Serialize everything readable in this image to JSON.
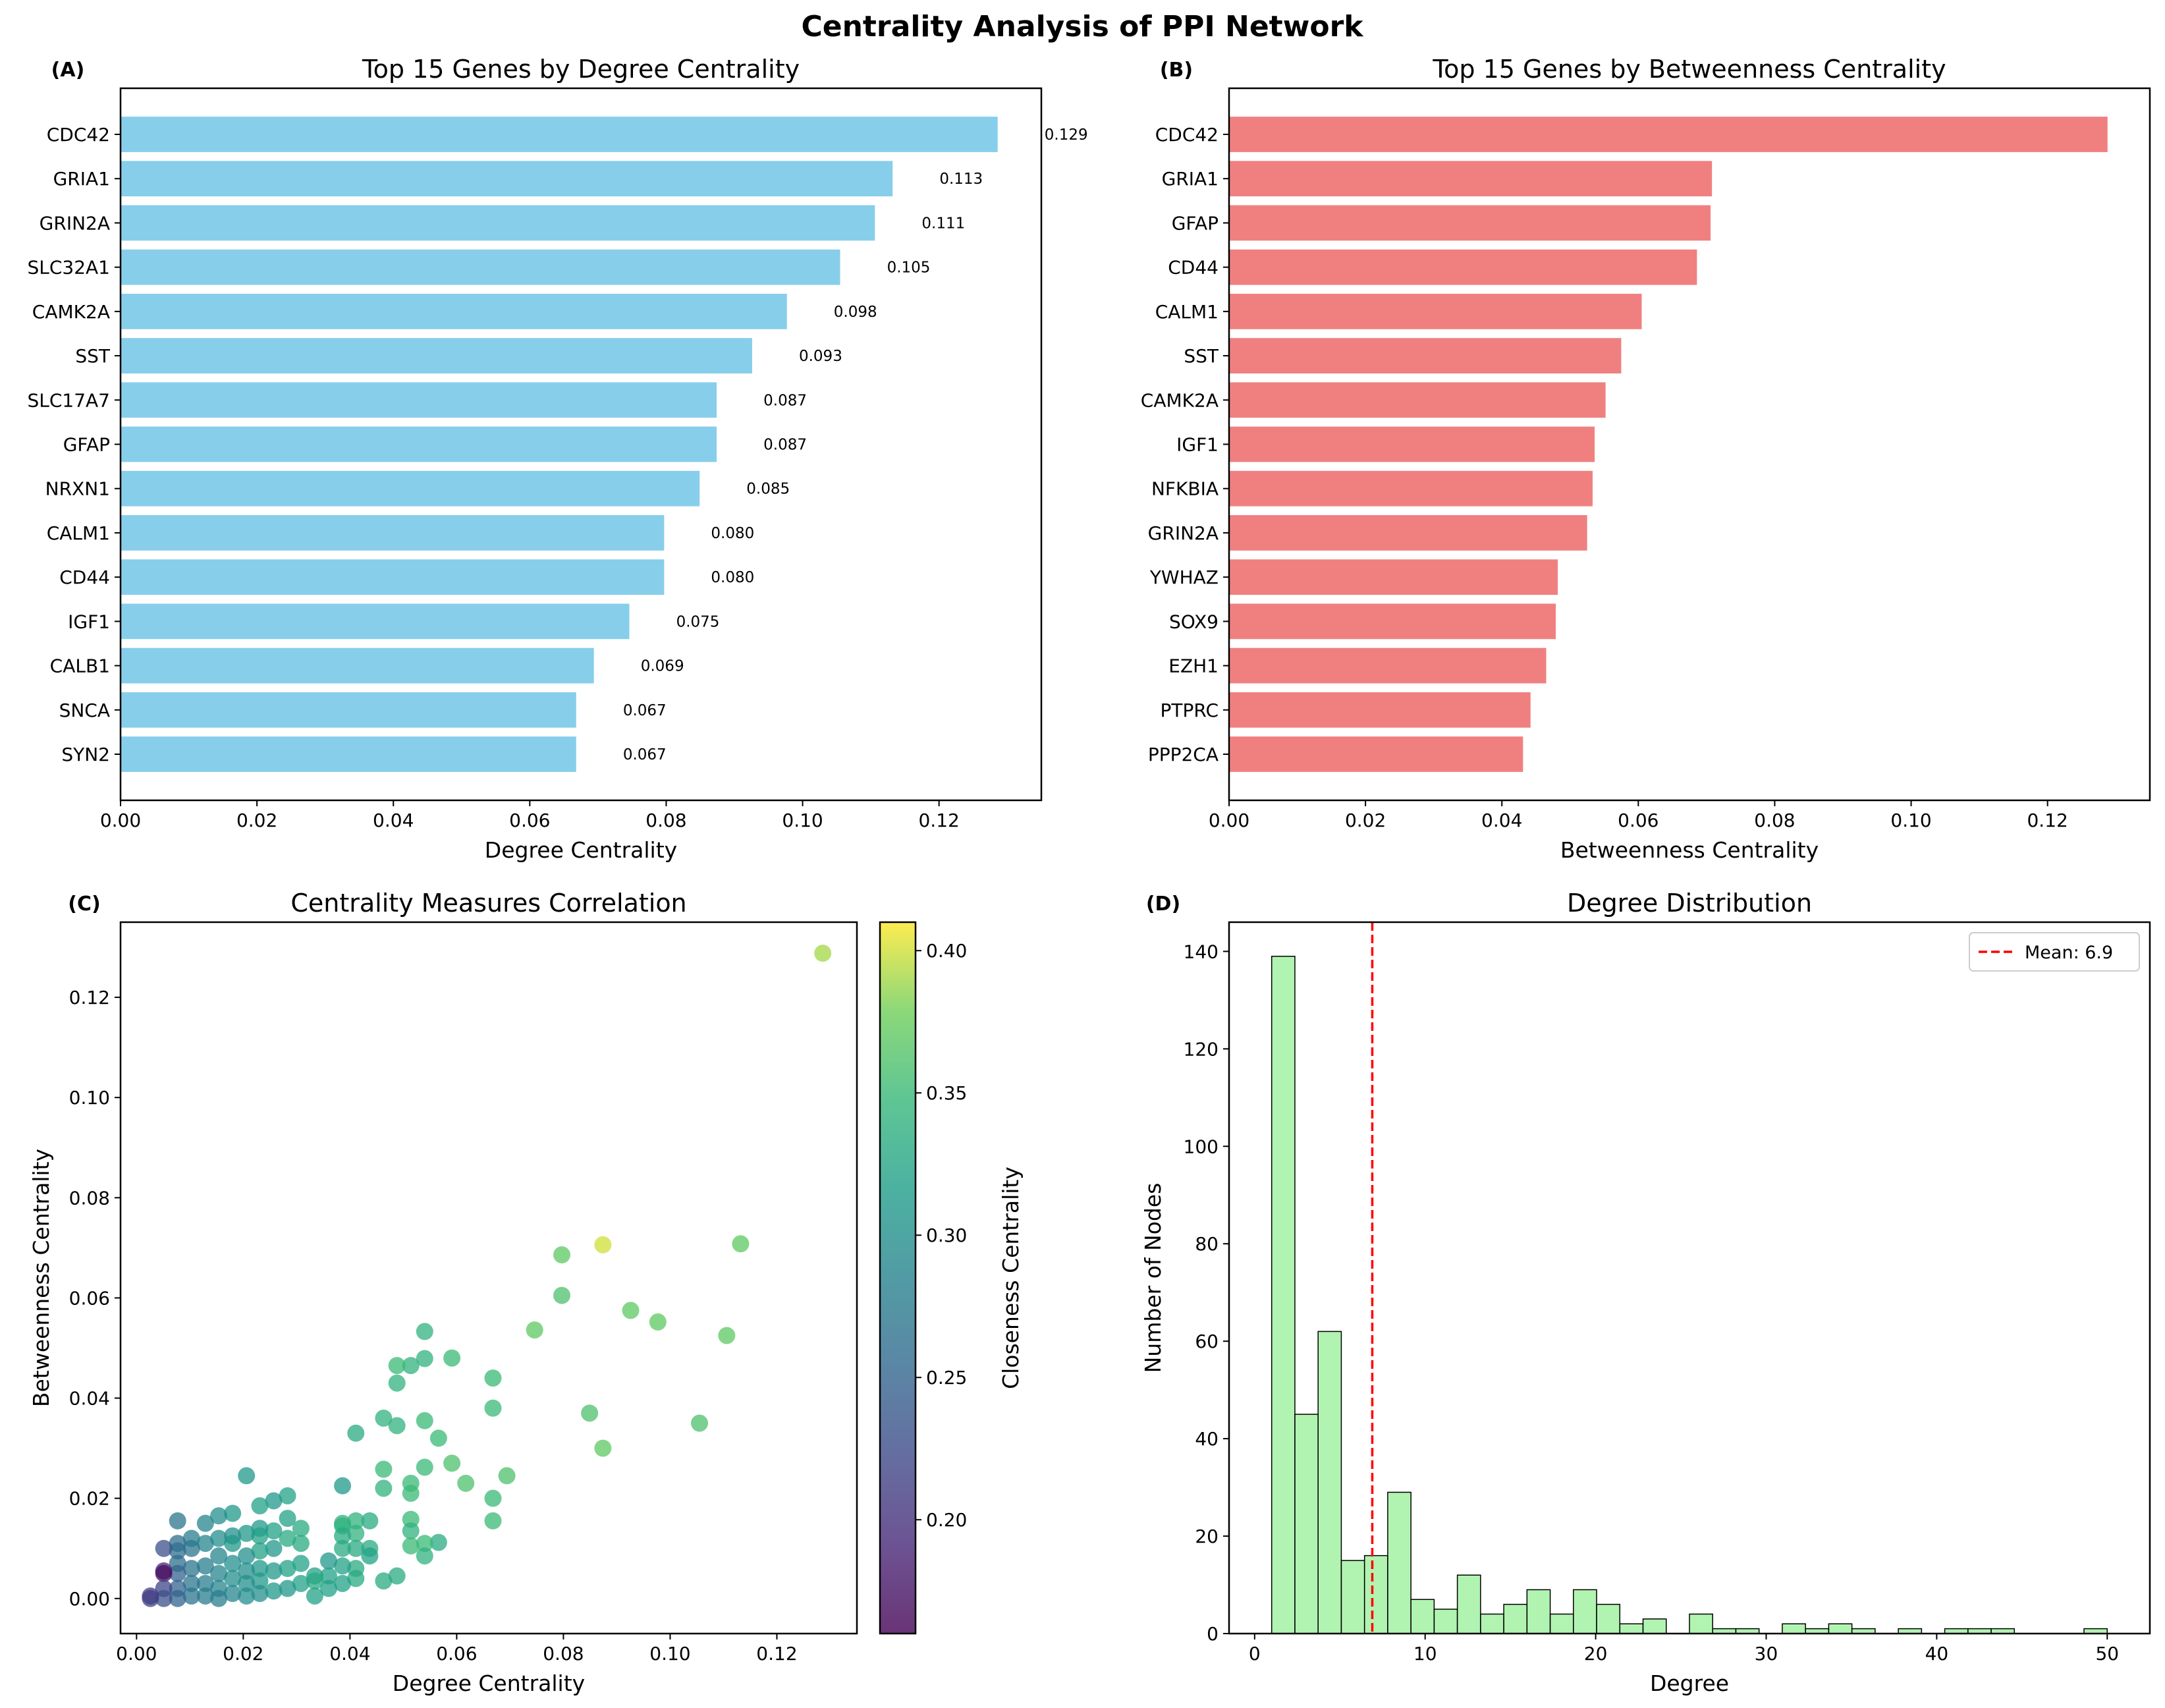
{
  "figure": {
    "title": "Centrality Analysis of PPI Network",
    "colors": {
      "degree_bar": "#87CEEB",
      "betweenness_bar": "#F08080",
      "histogram": "#90EE90",
      "mean_line": "#FF0000",
      "axis": "#000000"
    }
  },
  "chart_data": [
    {
      "panel_label": "(A)",
      "type": "bar",
      "orientation": "horizontal",
      "title": "Top 15 Genes by Degree Centrality",
      "xlabel": "Degree Centrality",
      "ylabel": "",
      "xlim": [
        0,
        0.135
      ],
      "xticks": [
        0,
        0.02,
        0.04,
        0.06,
        0.08,
        0.1,
        0.12
      ],
      "xtick_labels": [
        "0.00",
        "0.02",
        "0.04",
        "0.06",
        "0.08",
        "0.10",
        "0.12"
      ],
      "categories": [
        "CDC42",
        "GRIA1",
        "GRIN2A",
        "SLC32A1",
        "CAMK2A",
        "SST",
        "SLC17A7",
        "GFAP",
        "NRXN1",
        "CALM1",
        "CD44",
        "IGF1",
        "CALB1",
        "SNCA",
        "SYN2"
      ],
      "values": [
        0.1286,
        0.1132,
        0.1106,
        0.1055,
        0.0977,
        0.0926,
        0.0874,
        0.0874,
        0.0849,
        0.0797,
        0.0797,
        0.0746,
        0.0694,
        0.0668,
        0.0668
      ],
      "data_labels": [
        "0.129",
        "0.113",
        "0.111",
        "0.105",
        "0.098",
        "0.093",
        "0.087",
        "0.087",
        "0.085",
        "0.080",
        "0.080",
        "0.075",
        "0.069",
        "0.067",
        "0.067"
      ]
    },
    {
      "panel_label": "(B)",
      "type": "bar",
      "orientation": "horizontal",
      "title": "Top 15 Genes by Betweenness Centrality",
      "xlabel": "Betweenness Centrality",
      "ylabel": "",
      "xlim": [
        0,
        0.135
      ],
      "xticks": [
        0,
        0.02,
        0.04,
        0.06,
        0.08,
        0.1,
        0.12
      ],
      "xtick_labels": [
        "0.00",
        "0.02",
        "0.04",
        "0.06",
        "0.08",
        "0.10",
        "0.12"
      ],
      "categories": [
        "CDC42",
        "GRIA1",
        "GFAP",
        "CD44",
        "CALM1",
        "SST",
        "CAMK2A",
        "IGF1",
        "NFKBIA",
        "GRIN2A",
        "YWHAZ",
        "SOX9",
        "EZH1",
        "PTPRC",
        "PPP2CA"
      ],
      "values": [
        0.1288,
        0.0708,
        0.0706,
        0.0686,
        0.0605,
        0.0575,
        0.0552,
        0.0536,
        0.0533,
        0.0525,
        0.0482,
        0.0479,
        0.0465,
        0.0442,
        0.0431
      ]
    },
    {
      "panel_label": "(C)",
      "type": "scatter",
      "title": "Centrality Measures Correlation",
      "xlabel": "Degree Centrality",
      "ylabel": "Betweenness Centrality",
      "xlim": [
        -0.003,
        0.135
      ],
      "ylim": [
        -0.007,
        0.135
      ],
      "xticks": [
        0,
        0.02,
        0.04,
        0.06,
        0.08,
        0.1,
        0.12
      ],
      "xtick_labels": [
        "0.00",
        "0.02",
        "0.04",
        "0.06",
        "0.08",
        "0.10",
        "0.12"
      ],
      "yticks": [
        0,
        0.02,
        0.04,
        0.06,
        0.08,
        0.1,
        0.12
      ],
      "ytick_labels": [
        "0.00",
        "0.02",
        "0.04",
        "0.06",
        "0.08",
        "0.10",
        "0.12"
      ],
      "colorbar": {
        "label": "Closeness Centrality",
        "colormap": "viridis",
        "range": [
          0.16,
          0.41
        ],
        "ticks": [
          0.2,
          0.25,
          0.3,
          0.35,
          0.4
        ],
        "tick_labels": [
          "0.20",
          "0.25",
          "0.30",
          "0.35",
          "0.40"
        ]
      },
      "points": [
        [
          0.1286,
          0.1288,
          0.39
        ],
        [
          0.1132,
          0.0708,
          0.37
        ],
        [
          0.1106,
          0.0525,
          0.37
        ],
        [
          0.1055,
          0.035,
          0.36
        ],
        [
          0.0977,
          0.0552,
          0.37
        ],
        [
          0.0926,
          0.0575,
          0.37
        ],
        [
          0.0874,
          0.0706,
          0.4
        ],
        [
          0.0874,
          0.03,
          0.37
        ],
        [
          0.0849,
          0.037,
          0.36
        ],
        [
          0.0797,
          0.0605,
          0.36
        ],
        [
          0.0797,
          0.0686,
          0.37
        ],
        [
          0.0746,
          0.0536,
          0.37
        ],
        [
          0.0694,
          0.0245,
          0.36
        ],
        [
          0.0668,
          0.044,
          0.35
        ],
        [
          0.0668,
          0.038,
          0.35
        ],
        [
          0.0668,
          0.02,
          0.35
        ],
        [
          0.0668,
          0.0155,
          0.35
        ],
        [
          0.0617,
          0.023,
          0.36
        ],
        [
          0.0591,
          0.048,
          0.35
        ],
        [
          0.0591,
          0.027,
          0.36
        ],
        [
          0.0566,
          0.032,
          0.35
        ],
        [
          0.0566,
          0.0112,
          0.33
        ],
        [
          0.054,
          0.0533,
          0.34
        ],
        [
          0.054,
          0.0479,
          0.34
        ],
        [
          0.054,
          0.0355,
          0.35
        ],
        [
          0.054,
          0.0262,
          0.35
        ],
        [
          0.054,
          0.011,
          0.35
        ],
        [
          0.054,
          0.0085,
          0.34
        ],
        [
          0.0514,
          0.0465,
          0.34
        ],
        [
          0.0514,
          0.021,
          0.35
        ],
        [
          0.0514,
          0.023,
          0.35
        ],
        [
          0.0514,
          0.0158,
          0.35
        ],
        [
          0.0514,
          0.0135,
          0.34
        ],
        [
          0.0514,
          0.0105,
          0.35
        ],
        [
          0.0488,
          0.0465,
          0.35
        ],
        [
          0.0488,
          0.043,
          0.34
        ],
        [
          0.0488,
          0.0345,
          0.34
        ],
        [
          0.0488,
          0.0045,
          0.33
        ],
        [
          0.0463,
          0.036,
          0.34
        ],
        [
          0.0463,
          0.0258,
          0.35
        ],
        [
          0.0463,
          0.022,
          0.34
        ],
        [
          0.0463,
          0.0035,
          0.33
        ],
        [
          0.0437,
          0.0155,
          0.33
        ],
        [
          0.0437,
          0.01,
          0.33
        ],
        [
          0.0437,
          0.0085,
          0.32
        ],
        [
          0.0411,
          0.033,
          0.33
        ],
        [
          0.0411,
          0.0155,
          0.34
        ],
        [
          0.0411,
          0.013,
          0.34
        ],
        [
          0.0411,
          0.01,
          0.33
        ],
        [
          0.0411,
          0.006,
          0.33
        ],
        [
          0.0411,
          0.004,
          0.33
        ],
        [
          0.0386,
          0.0225,
          0.31
        ],
        [
          0.0386,
          0.015,
          0.34
        ],
        [
          0.0386,
          0.0145,
          0.34
        ],
        [
          0.0386,
          0.0125,
          0.33
        ],
        [
          0.0386,
          0.01,
          0.33
        ],
        [
          0.0386,
          0.0065,
          0.32
        ],
        [
          0.0386,
          0.003,
          0.32
        ],
        [
          0.036,
          0.0075,
          0.31
        ],
        [
          0.036,
          0.0045,
          0.32
        ],
        [
          0.036,
          0.002,
          0.32
        ],
        [
          0.0334,
          0.0045,
          0.32
        ],
        [
          0.0334,
          0.0035,
          0.33
        ],
        [
          0.0334,
          0.0005,
          0.32
        ],
        [
          0.0308,
          0.014,
          0.33
        ],
        [
          0.0308,
          0.011,
          0.33
        ],
        [
          0.0308,
          0.007,
          0.32
        ],
        [
          0.0308,
          0.003,
          0.32
        ],
        [
          0.0283,
          0.0205,
          0.32
        ],
        [
          0.0283,
          0.016,
          0.32
        ],
        [
          0.0283,
          0.012,
          0.33
        ],
        [
          0.0283,
          0.006,
          0.32
        ],
        [
          0.0283,
          0.002,
          0.31
        ],
        [
          0.0257,
          0.0195,
          0.31
        ],
        [
          0.0257,
          0.0135,
          0.32
        ],
        [
          0.0257,
          0.01,
          0.31
        ],
        [
          0.0257,
          0.0055,
          0.31
        ],
        [
          0.0257,
          0.0015,
          0.31
        ],
        [
          0.0231,
          0.0185,
          0.32
        ],
        [
          0.0231,
          0.014,
          0.31
        ],
        [
          0.0231,
          0.0125,
          0.32
        ],
        [
          0.0231,
          0.0095,
          0.32
        ],
        [
          0.0231,
          0.006,
          0.31
        ],
        [
          0.0231,
          0.0035,
          0.31
        ],
        [
          0.0231,
          0.001,
          0.3
        ],
        [
          0.0206,
          0.0245,
          0.31
        ],
        [
          0.0206,
          0.013,
          0.31
        ],
        [
          0.0206,
          0.0085,
          0.3
        ],
        [
          0.0206,
          0.0055,
          0.3
        ],
        [
          0.0206,
          0.003,
          0.3
        ],
        [
          0.0206,
          0.0005,
          0.3
        ],
        [
          0.018,
          0.017,
          0.31
        ],
        [
          0.018,
          0.0125,
          0.3
        ],
        [
          0.018,
          0.011,
          0.31
        ],
        [
          0.018,
          0.007,
          0.3
        ],
        [
          0.018,
          0.004,
          0.3
        ],
        [
          0.018,
          0.001,
          0.29
        ],
        [
          0.0154,
          0.0165,
          0.3
        ],
        [
          0.0154,
          0.012,
          0.3
        ],
        [
          0.0154,
          0.0085,
          0.29
        ],
        [
          0.0154,
          0.005,
          0.29
        ],
        [
          0.0154,
          0.002,
          0.29
        ],
        [
          0.0154,
          0.0,
          0.28
        ],
        [
          0.0129,
          0.015,
          0.29
        ],
        [
          0.0129,
          0.011,
          0.29
        ],
        [
          0.0129,
          0.0065,
          0.28
        ],
        [
          0.0129,
          0.003,
          0.28
        ],
        [
          0.0129,
          0.0005,
          0.28
        ],
        [
          0.0103,
          0.012,
          0.28
        ],
        [
          0.0103,
          0.01,
          0.27
        ],
        [
          0.0103,
          0.006,
          0.27
        ],
        [
          0.0103,
          0.003,
          0.27
        ],
        [
          0.0103,
          0.0005,
          0.27
        ],
        [
          0.0077,
          0.0155,
          0.27
        ],
        [
          0.0077,
          0.011,
          0.26
        ],
        [
          0.0077,
          0.0095,
          0.26
        ],
        [
          0.0077,
          0.007,
          0.26
        ],
        [
          0.0077,
          0.005,
          0.25
        ],
        [
          0.0077,
          0.002,
          0.25
        ],
        [
          0.0077,
          0.0,
          0.25
        ],
        [
          0.0051,
          0.01,
          0.23
        ],
        [
          0.0051,
          0.0055,
          0.19
        ],
        [
          0.0051,
          0.005,
          0.17
        ],
        [
          0.0051,
          0.002,
          0.22
        ],
        [
          0.0051,
          0.0,
          0.23
        ],
        [
          0.0026,
          0.0,
          0.22
        ],
        [
          0.0026,
          0.0005,
          0.21
        ]
      ]
    },
    {
      "panel_label": "(D)",
      "type": "bar",
      "subtype": "histogram",
      "title": "Degree Distribution",
      "xlabel": "Degree",
      "ylabel": "Number of Nodes",
      "xlim": [
        -1.5,
        52.5
      ],
      "ylim": [
        0,
        146
      ],
      "xticks": [
        0,
        10,
        20,
        30,
        40,
        50
      ],
      "xtick_labels": [
        "0",
        "10",
        "20",
        "30",
        "40",
        "50"
      ],
      "yticks": [
        0,
        20,
        40,
        60,
        80,
        100,
        120,
        140
      ],
      "ytick_labels": [
        "0",
        "20",
        "40",
        "60",
        "80",
        "100",
        "120",
        "140"
      ],
      "bin_start": 1,
      "bin_width": 1.3611,
      "counts": [
        139,
        45,
        62,
        15,
        16,
        29,
        7,
        5,
        12,
        4,
        6,
        9,
        4,
        9,
        6,
        2,
        3,
        0,
        4,
        1,
        1,
        0,
        2,
        1,
        2,
        1,
        0,
        1,
        0,
        1,
        1,
        1,
        0,
        0,
        0,
        1
      ],
      "mean": 6.9,
      "legend": {
        "label": "Mean: 6.9",
        "placement": "upper right"
      }
    }
  ]
}
